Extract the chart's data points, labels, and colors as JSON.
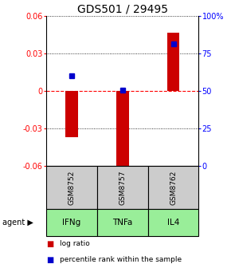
{
  "title": "GDS501 / 29495",
  "samples": [
    "GSM8752",
    "GSM8757",
    "GSM8762"
  ],
  "agents": [
    "IFNg",
    "TNFa",
    "IL4"
  ],
  "log_ratios": [
    -0.037,
    -0.065,
    0.047
  ],
  "percentile_ranks_mapped": [
    0.012,
    0.001,
    0.038
  ],
  "ylim_left": [
    -0.06,
    0.06
  ],
  "ylim_right": [
    0,
    1.0
  ],
  "yticks_left": [
    -0.06,
    -0.03,
    0.0,
    0.03,
    0.06
  ],
  "ytick_labels_left": [
    "-0.06",
    "-0.03",
    "0",
    "0.03",
    "0.06"
  ],
  "yticks_right": [
    0.0,
    0.25,
    0.5,
    0.75,
    1.0
  ],
  "ytick_labels_right": [
    "0",
    "25",
    "50",
    "75",
    "100%"
  ],
  "bar_color": "#cc0000",
  "point_color": "#0000cc",
  "zero_line_color": "#ff0000",
  "grid_color": "#000000",
  "sample_box_color": "#cccccc",
  "agent_box_color": "#99ee99",
  "bar_width": 0.25,
  "title_fontsize": 10,
  "tick_fontsize": 7,
  "label_fontsize": 7
}
